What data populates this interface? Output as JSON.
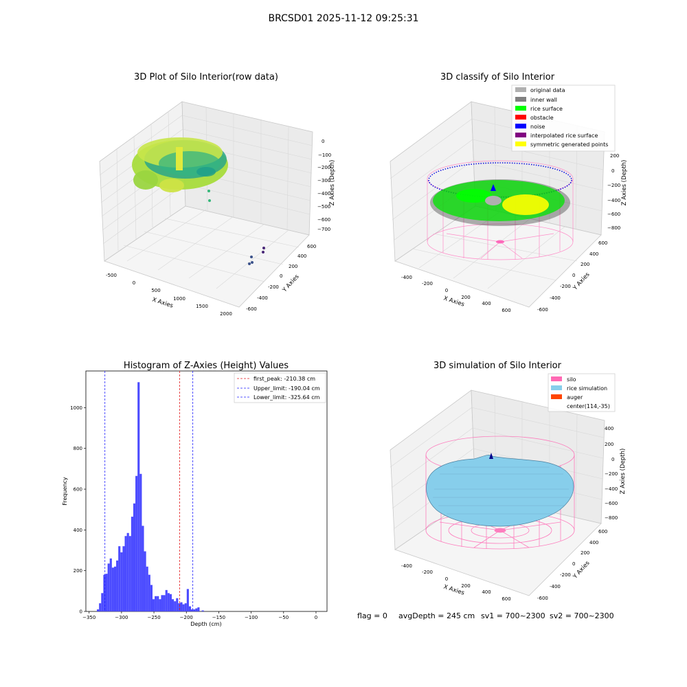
{
  "figure": {
    "suptitle": "BRCSD01 2025-11-12 09:25:31",
    "footer": {
      "flag": "flag = 0",
      "avg_depth": "avgDepth = 245 cm",
      "sv1": "sv1 = 700~2300",
      "sv2": "sv2 = 700~2300"
    }
  },
  "colors": {
    "hist_bar": "#4b4bff",
    "first_peak": "#e31a1c",
    "limit": "#1f1fff",
    "original": "#b0b0b0",
    "inner_wall": "#808080",
    "rice_surface": "#00ff00",
    "obstacle": "#ff0000",
    "noise": "#0000ff",
    "interpolated": "#800080",
    "symmetric": "#ffff00",
    "silo": "#ff69b4",
    "rice_sim": "#87ceeb",
    "auger": "#ff4500",
    "pane": "#f2f2f2",
    "grid": "#d0d0d0"
  },
  "panel_raw": {
    "title": "3D Plot of Silo Interior(row data)",
    "x_label": "X Axies",
    "y_label": "Y Axies",
    "z_label": "Z Axies (Depth)",
    "x_ticks": [
      "-500",
      "0",
      "500",
      "1000",
      "1500",
      "2000"
    ],
    "y_ticks": [
      "-600",
      "-400",
      "-200",
      "0",
      "200",
      "400",
      "600"
    ],
    "z_ticks": [
      "0",
      "−100",
      "−200",
      "−300",
      "−400",
      "−500",
      "−600",
      "−700"
    ]
  },
  "panel_classify": {
    "title": "3D classify of Silo Interior",
    "x_label": "X Axies",
    "y_label": "Y Axies",
    "z_label": "Z Axies (Depth)",
    "x_ticks": [
      "-400",
      "-200",
      "0",
      "200",
      "400",
      "600"
    ],
    "y_ticks": [
      "-600",
      "-400",
      "-200",
      "0",
      "200",
      "400",
      "600"
    ],
    "z_ticks": [
      "200",
      "0",
      "−200",
      "−400",
      "−600",
      "−800"
    ],
    "legend": [
      {
        "label": "original data",
        "color": "#b0b0b0"
      },
      {
        "label": "inner wall",
        "color": "#808080"
      },
      {
        "label": "rice surface",
        "color": "#00ff00"
      },
      {
        "label": "obstacle",
        "color": "#ff0000"
      },
      {
        "label": "noise",
        "color": "#0000ff"
      },
      {
        "label": "interpolated rice surface",
        "color": "#800080"
      },
      {
        "label": "symmetric generated points",
        "color": "#ffff00"
      }
    ]
  },
  "panel_sim": {
    "title": "3D simulation of Silo Interior",
    "x_label": "X Axies",
    "y_label": "Y Axies",
    "z_label": "Z Axies (Depth)",
    "x_ticks": [
      "-400",
      "-200",
      "0",
      "200",
      "400",
      "600"
    ],
    "y_ticks": [
      "-600",
      "-400",
      "-200",
      "0",
      "200",
      "400",
      "600"
    ],
    "z_ticks": [
      "400",
      "200",
      "0",
      "−200",
      "−400",
      "−600",
      "−800"
    ],
    "legend": [
      {
        "label": "silo",
        "color": "#ff69b4"
      },
      {
        "label": "rice simulation",
        "color": "#87ceeb"
      },
      {
        "label": "auger",
        "color": "#ff4500"
      },
      {
        "label": "center(114,-35)",
        "color": ""
      }
    ]
  },
  "chart_data": {
    "type": "bar",
    "title": "Histogram of Z-Axies (Height) Values",
    "xlabel": "Depth (cm)",
    "ylabel": "Frequency",
    "xlim": [
      -355,
      17
    ],
    "ylim": [
      0,
      1180
    ],
    "x_ticks": [
      -350,
      -300,
      -250,
      -200,
      -150,
      -100,
      -50,
      0
    ],
    "x_tick_labels": [
      "−350",
      "−300",
      "−250",
      "−200",
      "−150",
      "−100",
      "−50",
      "0"
    ],
    "y_ticks": [
      0,
      200,
      400,
      600,
      800,
      1000
    ],
    "y_tick_labels": [
      "0",
      "200",
      "400",
      "600",
      "800",
      "1000"
    ],
    "bin_start": -338,
    "bin_width": 3.3,
    "values": [
      10,
      40,
      90,
      180,
      185,
      235,
      260,
      215,
      220,
      250,
      320,
      290,
      320,
      370,
      385,
      370,
      465,
      530,
      665,
      1125,
      675,
      420,
      295,
      220,
      180,
      130,
      60,
      75,
      75,
      60,
      80,
      80,
      105,
      90,
      85,
      60,
      50,
      65,
      40,
      45,
      35,
      40,
      110,
      25,
      10,
      10,
      15,
      20,
      0,
      5
    ],
    "lines": [
      {
        "label": "first_peak: -210.38 cm",
        "x": -210.38,
        "color": "#e31a1c"
      },
      {
        "label": "Upper_limit: -190.04 cm",
        "x": -190.04,
        "color": "#1f1fff"
      },
      {
        "label": "Lower_limit: -325.64 cm",
        "x": -325.64,
        "color": "#1f1fff"
      }
    ]
  }
}
